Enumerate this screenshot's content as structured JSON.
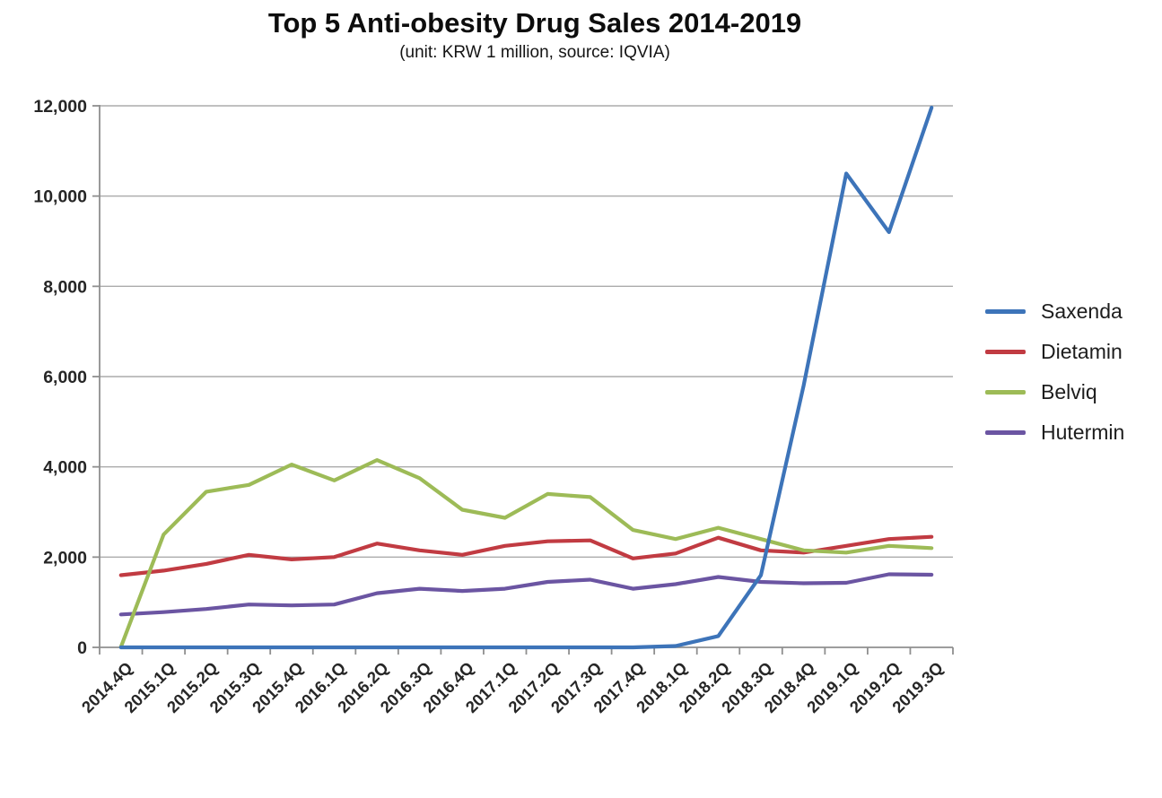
{
  "chart": {
    "title": "Top 5 Anti-obesity Drug Sales 2014-2019",
    "subtitle": "(unit: KRW 1 million, source: IQVIA)"
  },
  "chart_data": {
    "type": "line",
    "title": "Top 5 Anti-obesity Drug Sales 2014-2019",
    "subtitle": "(unit: KRW 1 million, source: IQVIA)",
    "categories": [
      "2014.4Q",
      "2015.1Q",
      "2015.2Q",
      "2015.3Q",
      "2015.4Q",
      "2016.1Q",
      "2016.2Q",
      "2016.3Q",
      "2016.4Q",
      "2017.1Q",
      "2017.2Q",
      "2017.3Q",
      "2017.4Q",
      "2018.1Q",
      "2018.2Q",
      "2018.3Q",
      "2018.4Q",
      "2019.1Q",
      "2019.2Q",
      "2019.3Q"
    ],
    "series": [
      {
        "name": "Saxenda",
        "color": "#3D74B9",
        "values": [
          0,
          0,
          0,
          0,
          0,
          0,
          0,
          0,
          0,
          0,
          0,
          0,
          0,
          30,
          250,
          1600,
          5800,
          10500,
          9200,
          11960
        ]
      },
      {
        "name": "Dietamin",
        "color": "#C13B42",
        "values": [
          1600,
          1700,
          1850,
          2050,
          1950,
          2000,
          2300,
          2150,
          2050,
          2250,
          2350,
          2370,
          1970,
          2080,
          2430,
          2150,
          2100,
          2250,
          2400,
          2450
        ]
      },
      {
        "name": "Belviq",
        "color": "#9DBB57",
        "values": [
          10,
          2500,
          3450,
          3600,
          4050,
          3700,
          4150,
          3750,
          3050,
          2870,
          3400,
          3330,
          2600,
          2400,
          2650,
          2400,
          2150,
          2100,
          2250,
          2200
        ]
      },
      {
        "name": "Hutermin",
        "color": "#6B55A2",
        "values": [
          730,
          780,
          850,
          950,
          930,
          950,
          1200,
          1300,
          1250,
          1300,
          1450,
          1500,
          1300,
          1400,
          1560,
          1450,
          1420,
          1430,
          1620,
          1610
        ]
      }
    ],
    "draw_order": [
      "Hutermin",
      "Dietamin",
      "Belviq",
      "Saxenda"
    ],
    "ylim": [
      0,
      12000
    ],
    "ytick_step": 2000,
    "ytick_labels": [
      "0",
      "2,000",
      "4,000",
      "6,000",
      "8,000",
      "10,000",
      "12,000"
    ],
    "grid": true,
    "legend_position": "right",
    "axis_color": "#8f8f8f",
    "grid_color": "#ababab"
  }
}
